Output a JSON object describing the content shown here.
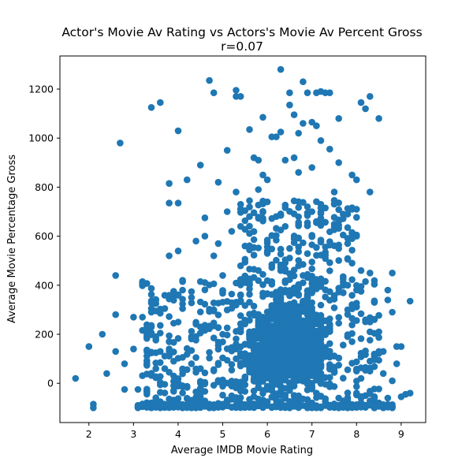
{
  "chart_data": {
    "type": "scatter",
    "title": "Actor's Movie Av Rating vs Actors's Movie Av Percent Gross",
    "subtitle": "r=0.07",
    "xlabel": "Average IMDB Movie Rating",
    "ylabel": "Average Movie Percentage Gross",
    "xlim": [
      1.35,
      9.55
    ],
    "ylim": [
      -160,
      1335
    ],
    "xticks": [
      "2",
      "3",
      "4",
      "5",
      "6",
      "7",
      "8",
      "9"
    ],
    "yticks": [
      "0",
      "200",
      "400",
      "600",
      "800",
      "1000",
      "1200"
    ],
    "grid": false,
    "marker_color": "#1f77b4",
    "points_note": "Approximately 2,500 points; dense core at x 5.5-7.5, y -100-400.",
    "points": [
      [
        1.7,
        20
      ],
      [
        2.0,
        150
      ],
      [
        2.1,
        -85
      ],
      [
        2.1,
        -100
      ],
      [
        2.3,
        200
      ],
      [
        2.4,
        40
      ],
      [
        2.6,
        440
      ],
      [
        2.6,
        280
      ],
      [
        2.6,
        130
      ],
      [
        2.7,
        980
      ],
      [
        2.8,
        80
      ],
      [
        2.8,
        -25
      ],
      [
        3.0,
        270
      ],
      [
        3.0,
        140
      ],
      [
        3.1,
        -25
      ],
      [
        3.1,
        -100
      ],
      [
        3.2,
        415
      ],
      [
        3.2,
        270
      ],
      [
        3.3,
        190
      ],
      [
        3.3,
        130
      ],
      [
        3.3,
        80
      ],
      [
        3.4,
        1125
      ],
      [
        3.4,
        305
      ],
      [
        3.5,
        340
      ],
      [
        3.5,
        190
      ],
      [
        3.6,
        1145
      ],
      [
        3.6,
        130
      ],
      [
        3.7,
        60
      ],
      [
        3.8,
        815
      ],
      [
        3.8,
        735
      ],
      [
        3.8,
        520
      ],
      [
        3.8,
        170
      ],
      [
        3.9,
        375
      ],
      [
        3.9,
        90
      ],
      [
        4.0,
        1030
      ],
      [
        4.0,
        735
      ],
      [
        4.0,
        540
      ],
      [
        4.0,
        250
      ],
      [
        4.1,
        415
      ],
      [
        4.1,
        380
      ],
      [
        4.2,
        830
      ],
      [
        4.3,
        350
      ],
      [
        4.4,
        580
      ],
      [
        4.5,
        890
      ],
      [
        4.6,
        675
      ],
      [
        4.6,
        600
      ],
      [
        4.7,
        1235
      ],
      [
        4.8,
        1185
      ],
      [
        4.8,
        520
      ],
      [
        4.8,
        300
      ],
      [
        4.9,
        820
      ],
      [
        4.9,
        570
      ],
      [
        5.0,
        440
      ],
      [
        5.0,
        200
      ],
      [
        5.1,
        950
      ],
      [
        5.1,
        700
      ],
      [
        5.2,
        620
      ],
      [
        5.3,
        1195
      ],
      [
        5.3,
        1170
      ],
      [
        5.3,
        780
      ],
      [
        5.4,
        1170
      ],
      [
        5.4,
        730
      ],
      [
        5.5,
        560
      ],
      [
        5.6,
        1035
      ],
      [
        5.6,
        680
      ],
      [
        5.7,
        920
      ],
      [
        5.8,
        910
      ],
      [
        5.8,
        790
      ],
      [
        5.9,
        1085
      ],
      [
        5.9,
        850
      ],
      [
        6.0,
        830
      ],
      [
        6.0,
        740
      ],
      [
        6.1,
        1005
      ],
      [
        6.2,
        1005
      ],
      [
        6.2,
        680
      ],
      [
        6.3,
        1280
      ],
      [
        6.3,
        1025
      ],
      [
        6.4,
        910
      ],
      [
        6.4,
        640
      ],
      [
        6.5,
        1185
      ],
      [
        6.5,
        1135
      ],
      [
        6.6,
        1095
      ],
      [
        6.6,
        920
      ],
      [
        6.7,
        1020
      ],
      [
        6.7,
        860
      ],
      [
        6.8,
        1230
      ],
      [
        6.8,
        1060
      ],
      [
        6.9,
        1185
      ],
      [
        7.0,
        1065
      ],
      [
        7.0,
        880
      ],
      [
        7.1,
        1185
      ],
      [
        7.1,
        1050
      ],
      [
        7.2,
        1190
      ],
      [
        7.2,
        990
      ],
      [
        7.3,
        1185
      ],
      [
        7.4,
        1185
      ],
      [
        7.4,
        955
      ],
      [
        7.5,
        780
      ],
      [
        7.6,
        900
      ],
      [
        7.6,
        1080
      ],
      [
        7.7,
        690
      ],
      [
        7.8,
        690
      ],
      [
        7.9,
        850
      ],
      [
        7.9,
        710
      ],
      [
        8.0,
        710
      ],
      [
        8.0,
        830
      ],
      [
        8.1,
        1145
      ],
      [
        8.2,
        1120
      ],
      [
        8.3,
        1170
      ],
      [
        8.3,
        780
      ],
      [
        8.5,
        1080
      ],
      [
        8.8,
        450
      ],
      [
        8.8,
        290
      ],
      [
        8.7,
        380
      ],
      [
        8.7,
        340
      ],
      [
        8.8,
        10
      ],
      [
        8.9,
        150
      ],
      [
        9.0,
        150
      ],
      [
        9.0,
        -55
      ],
      [
        9.1,
        -45
      ],
      [
        9.2,
        335
      ],
      [
        9.2,
        -40
      ],
      [
        8.9,
        80
      ],
      [
        8.8,
        -100
      ],
      [
        8.6,
        130
      ],
      [
        8.6,
        40
      ],
      [
        8.4,
        330
      ],
      [
        8.4,
        260
      ],
      [
        8.3,
        450
      ],
      [
        8.3,
        90
      ],
      [
        8.1,
        460
      ],
      [
        8.1,
        20
      ],
      [
        8.0,
        600
      ],
      [
        8.0,
        380
      ],
      [
        7.9,
        490
      ],
      [
        7.9,
        170
      ],
      [
        7.8,
        -100
      ],
      [
        8.2,
        -50
      ],
      [
        8.5,
        -80
      ],
      [
        8.7,
        -60
      ],
      [
        8.4,
        -100
      ]
    ]
  }
}
